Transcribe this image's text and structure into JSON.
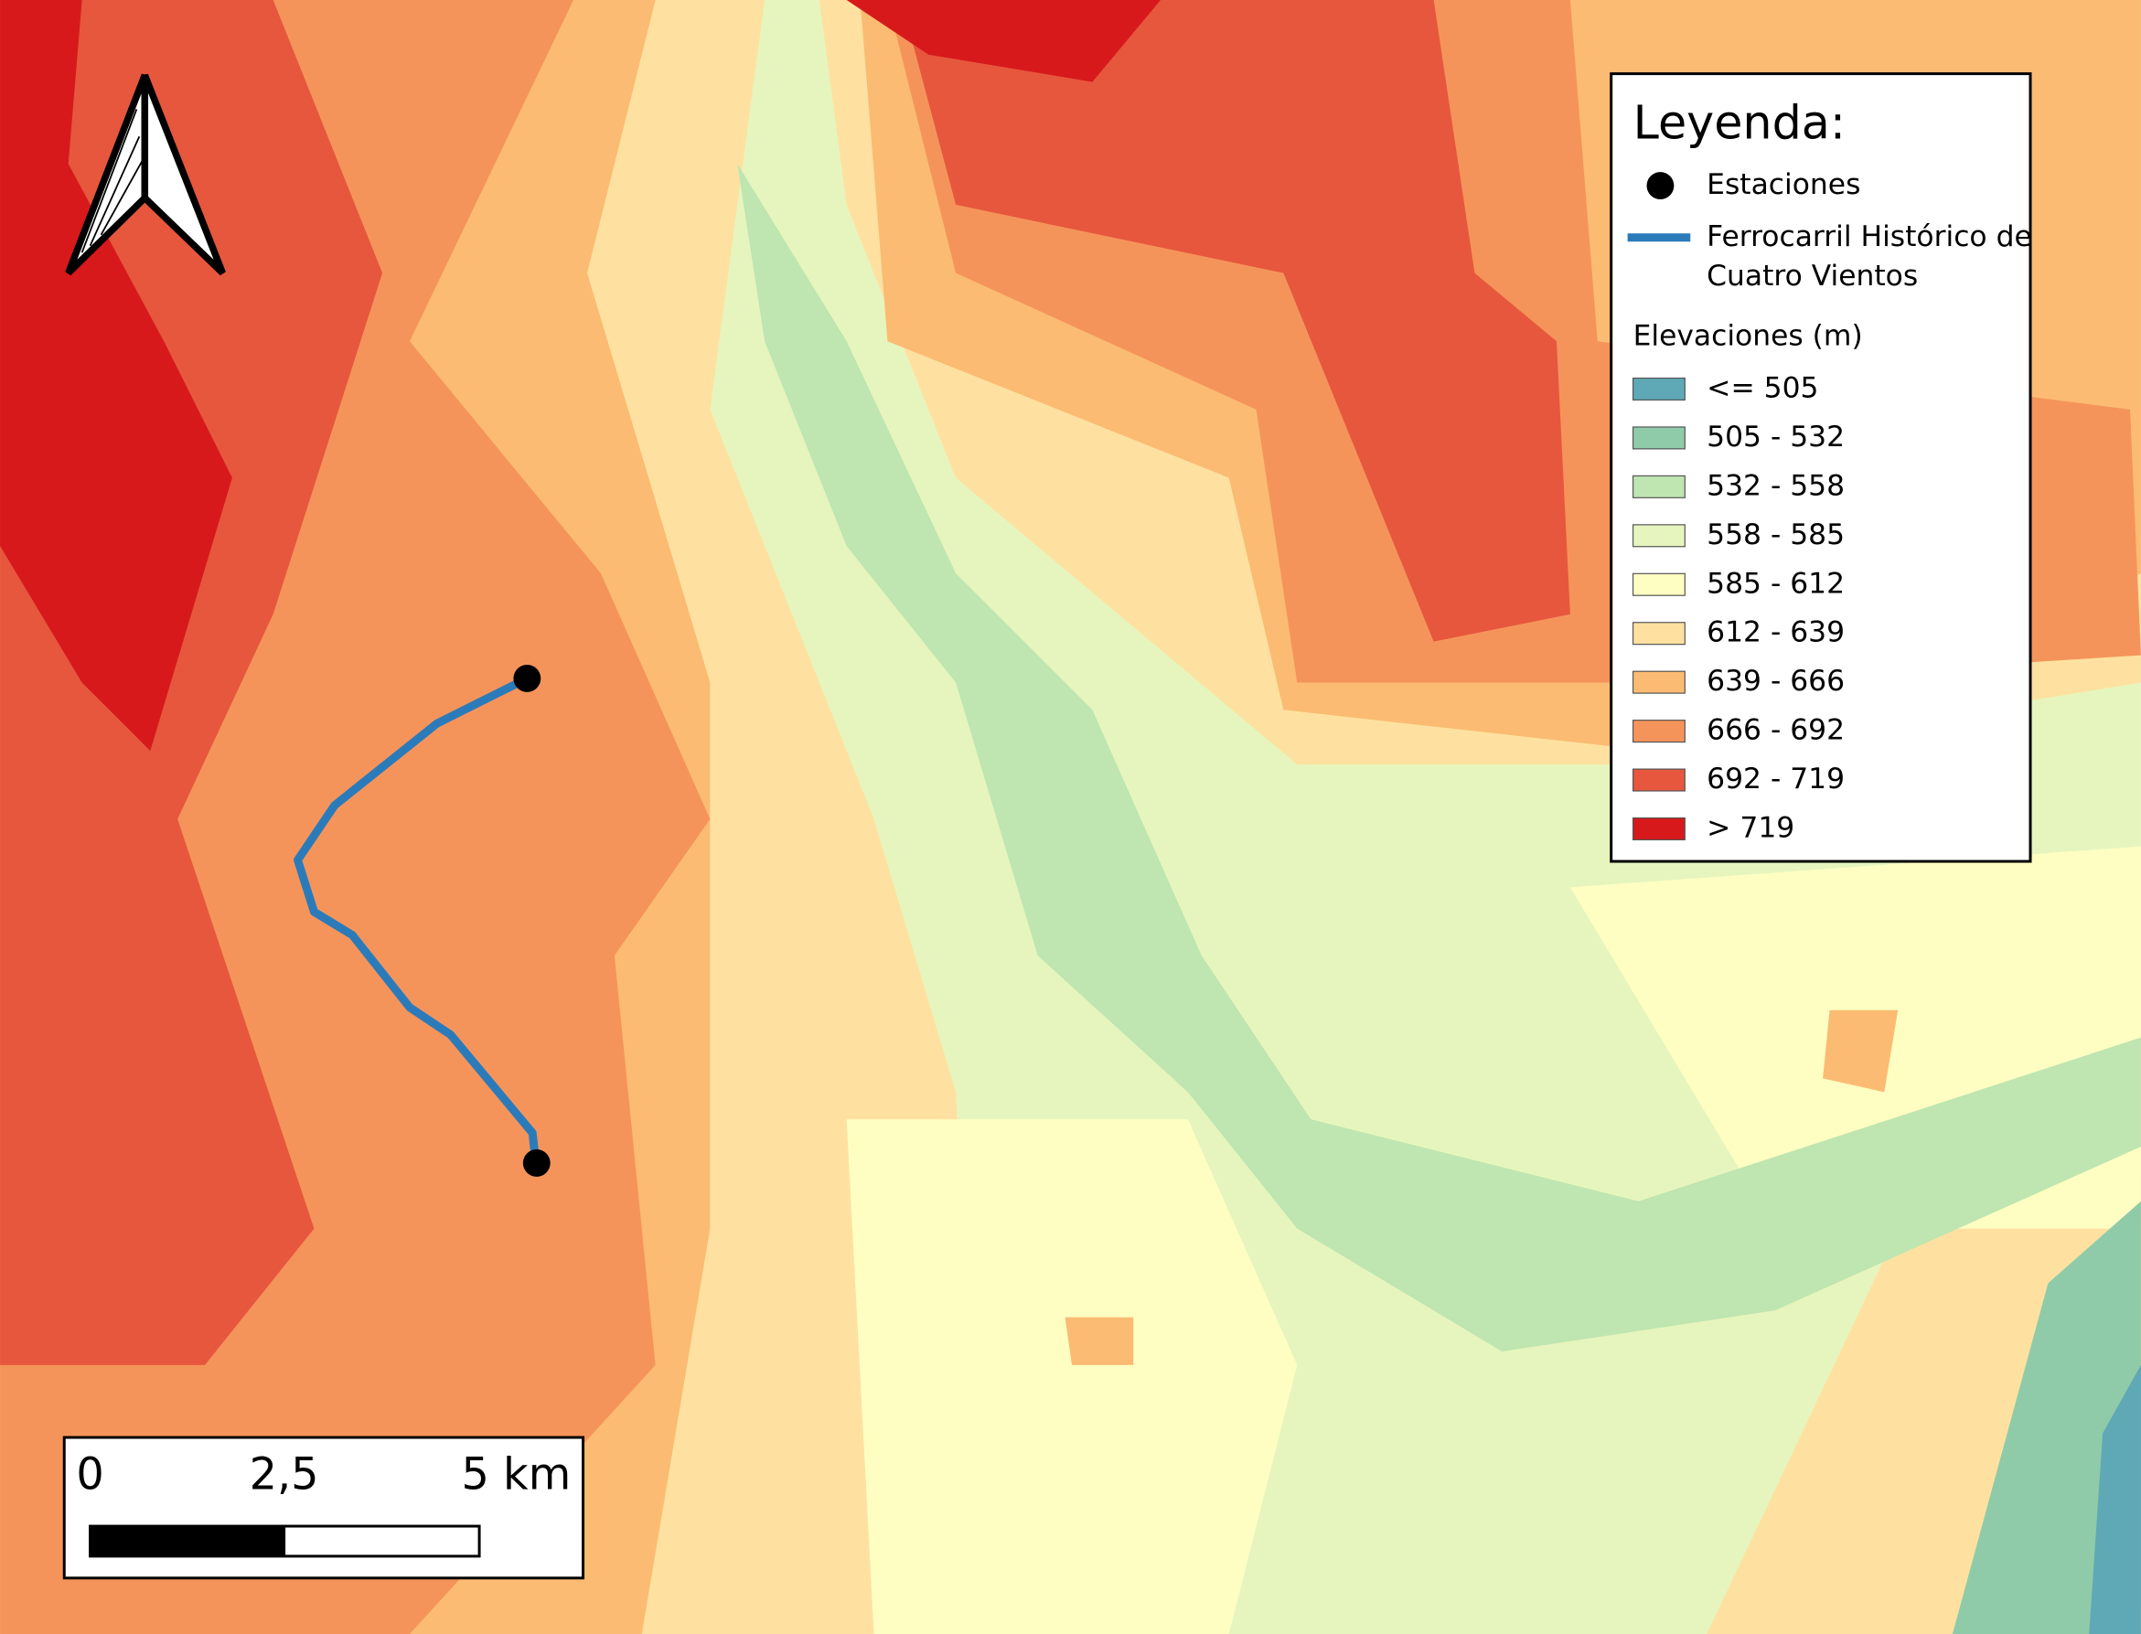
{
  "legend": {
    "title": "Leyenda:",
    "stations": "Estaciones",
    "railway": [
      "Ferrocarril Histórico de",
      "Cuatro Vientos"
    ],
    "elevation_title": "Elevaciones (m)",
    "classes": [
      {
        "label": "<= 505",
        "color": "#5fa8b6"
      },
      {
        "label": "505 - 532",
        "color": "#8fcba8"
      },
      {
        "label": "532 - 558",
        "color": "#bfe5b0"
      },
      {
        "label": "558 - 585",
        "color": "#e6f5bd"
      },
      {
        "label": "585 - 612",
        "color": "#fefec2"
      },
      {
        "label": "612 - 639",
        "color": "#fee1a0"
      },
      {
        "label": "639 - 666",
        "color": "#fbbb72"
      },
      {
        "label": "666 - 692",
        "color": "#f5945a"
      },
      {
        "label": "692 - 719",
        "color": "#e6573d"
      },
      {
        "label": "> 719",
        "color": "#d7191c"
      }
    ]
  },
  "scale_bar": {
    "labels": [
      "0",
      "2,5",
      "5 km"
    ]
  }
}
